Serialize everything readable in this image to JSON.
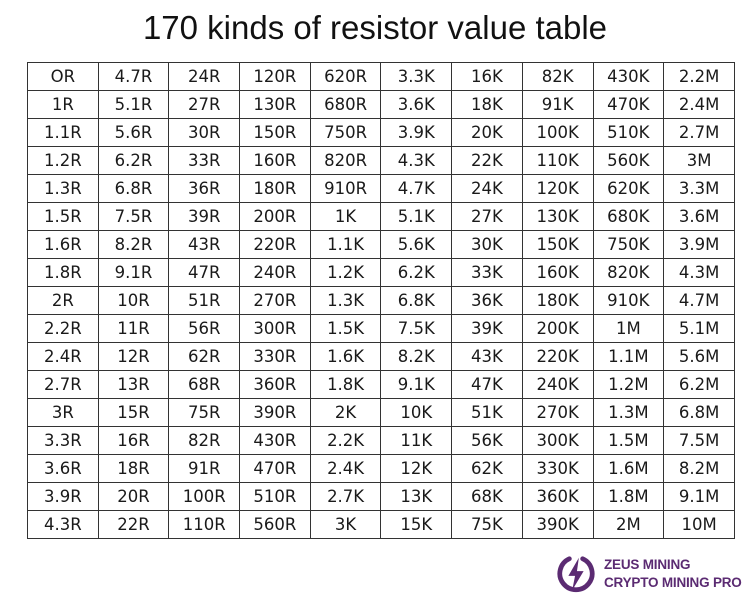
{
  "title": "170 kinds of resistor value table",
  "rows": [
    [
      "OR",
      "4.7R",
      "24R",
      "120R",
      "620R",
      "3.3K",
      "16K",
      "82K",
      "430K",
      "2.2M"
    ],
    [
      "1R",
      "5.1R",
      "27R",
      "130R",
      "680R",
      "3.6K",
      "18K",
      "91K",
      "470K",
      "2.4M"
    ],
    [
      "1.1R",
      "5.6R",
      "30R",
      "150R",
      "750R",
      "3.9K",
      "20K",
      "100K",
      "510K",
      "2.7M"
    ],
    [
      "1.2R",
      "6.2R",
      "33R",
      "160R",
      "820R",
      "4.3K",
      "22K",
      "110K",
      "560K",
      "3M"
    ],
    [
      "1.3R",
      "6.8R",
      "36R",
      "180R",
      "910R",
      "4.7K",
      "24K",
      "120K",
      "620K",
      "3.3M"
    ],
    [
      "1.5R",
      "7.5R",
      "39R",
      "200R",
      "1K",
      "5.1K",
      "27K",
      "130K",
      "680K",
      "3.6M"
    ],
    [
      "1.6R",
      "8.2R",
      "43R",
      "220R",
      "1.1K",
      "5.6K",
      "30K",
      "150K",
      "750K",
      "3.9M"
    ],
    [
      "1.8R",
      "9.1R",
      "47R",
      "240R",
      "1.2K",
      "6.2K",
      "33K",
      "160K",
      "820K",
      "4.3M"
    ],
    [
      "2R",
      "10R",
      "51R",
      "270R",
      "1.3K",
      "6.8K",
      "36K",
      "180K",
      "910K",
      "4.7M"
    ],
    [
      "2.2R",
      "11R",
      "56R",
      "300R",
      "1.5K",
      "7.5K",
      "39K",
      "200K",
      "1M",
      "5.1M"
    ],
    [
      "2.4R",
      "12R",
      "62R",
      "330R",
      "1.6K",
      "8.2K",
      "43K",
      "220K",
      "1.1M",
      "5.6M"
    ],
    [
      "2.7R",
      "13R",
      "68R",
      "360R",
      "1.8K",
      "9.1K",
      "47K",
      "240K",
      "1.2M",
      "6.2M"
    ],
    [
      "3R",
      "15R",
      "75R",
      "390R",
      "2K",
      "10K",
      "51K",
      "270K",
      "1.3M",
      "6.8M"
    ],
    [
      "3.3R",
      "16R",
      "82R",
      "430R",
      "2.2K",
      "11K",
      "56K",
      "300K",
      "1.5M",
      "7.5M"
    ],
    [
      "3.6R",
      "18R",
      "91R",
      "470R",
      "2.4K",
      "12K",
      "62K",
      "330K",
      "1.6M",
      "8.2M"
    ],
    [
      "3.9R",
      "20R",
      "100R",
      "510R",
      "2.7K",
      "13K",
      "68K",
      "360K",
      "1.8M",
      "9.1M"
    ],
    [
      "4.3R",
      "22R",
      "110R",
      "560R",
      "3K",
      "15K",
      "75K",
      "390K",
      "2M",
      "10M"
    ]
  ],
  "logo": {
    "line1": "ZEUS MINING",
    "line2": "CRYPTO MINING PRO",
    "icon": "lightning-bolt-circle-icon",
    "color": "#5b2b72"
  }
}
